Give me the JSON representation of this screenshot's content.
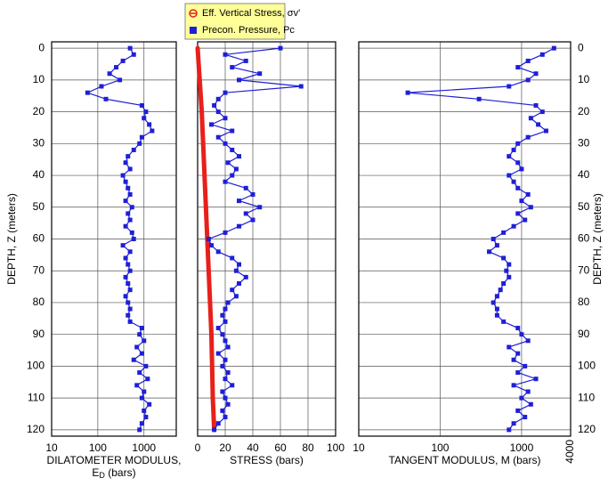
{
  "chart_data": [
    {
      "type": "scatter",
      "log_x": true,
      "invert_y": true,
      "ytick_side": "left",
      "xlabel": "DILATOMETER MODULUS,",
      "xlabel2": {
        "main": "E",
        "sub": "D",
        "rest": " (bars)"
      },
      "ylabel": "DEPTH, Z (meters)",
      "xlim": [
        10,
        5000
      ],
      "xticks": [
        10,
        100,
        1000
      ],
      "ylim": [
        -2,
        122
      ],
      "yticks": [
        0,
        10,
        20,
        30,
        40,
        50,
        60,
        70,
        80,
        90,
        100,
        110,
        120
      ],
      "grid": true,
      "series": [
        {
          "name": "ED",
          "color": "#1f1fd6",
          "marker": "square",
          "y": [
            0,
            2,
            4,
            6,
            8,
            10,
            12,
            14,
            16,
            18,
            20,
            22,
            24,
            26,
            28,
            30,
            32,
            34,
            36,
            38,
            40,
            42,
            44,
            46,
            48,
            50,
            52,
            54,
            56,
            58,
            60,
            62,
            64,
            66,
            68,
            70,
            72,
            74,
            76,
            78,
            80,
            82,
            84,
            86,
            88,
            90,
            92,
            94,
            96,
            98,
            100,
            102,
            104,
            106,
            108,
            110,
            112,
            114,
            116,
            118,
            120
          ],
          "values": [
            500,
            600,
            350,
            250,
            180,
            300,
            120,
            60,
            150,
            900,
            1100,
            1000,
            1300,
            1500,
            900,
            800,
            600,
            450,
            400,
            500,
            350,
            400,
            450,
            500,
            400,
            550,
            450,
            500,
            400,
            550,
            600,
            350,
            500,
            400,
            450,
            500,
            400,
            450,
            500,
            400,
            450,
            500,
            450,
            500,
            900,
            800,
            1000,
            700,
            900,
            600,
            1100,
            800,
            1200,
            700,
            1000,
            900,
            1300,
            1000,
            1100,
            900,
            800
          ]
        }
      ]
    },
    {
      "type": "scatter",
      "log_x": false,
      "invert_y": true,
      "ytick_side": "none",
      "xlabel": "STRESS (bars)",
      "legend": "top",
      "xlim": [
        0,
        100
      ],
      "xticks": [
        0,
        20,
        40,
        60,
        80,
        100
      ],
      "ylim": [
        -2,
        122
      ],
      "yticks": [
        0,
        10,
        20,
        30,
        40,
        50,
        60,
        70,
        80,
        90,
        100,
        110,
        120
      ],
      "grid": true,
      "series": [
        {
          "name": "Eff. Vertical Stress, σv'",
          "color": "#e8201a",
          "marker": "circle",
          "y": [
            0,
            10,
            20,
            30,
            40,
            50,
            60,
            70,
            80,
            90,
            100,
            110,
            120
          ],
          "values": [
            0,
            1.5,
            3,
            4,
            5,
            6,
            7,
            8,
            9,
            10,
            10.5,
            11,
            12
          ]
        },
        {
          "name": "Precon. Pressure, Pc",
          "color": "#1f1fd6",
          "marker": "square",
          "y": [
            0,
            2,
            4,
            6,
            8,
            10,
            12,
            14,
            16,
            18,
            20,
            22,
            24,
            26,
            28,
            30,
            32,
            34,
            36,
            38,
            40,
            42,
            44,
            46,
            48,
            50,
            52,
            54,
            56,
            58,
            60,
            62,
            64,
            66,
            68,
            70,
            72,
            74,
            76,
            78,
            80,
            82,
            84,
            86,
            88,
            90,
            92,
            94,
            96,
            98,
            100,
            102,
            104,
            106,
            108,
            110,
            112,
            114,
            116,
            118,
            120
          ],
          "values": [
            60,
            20,
            35,
            25,
            45,
            30,
            75,
            20,
            15,
            12,
            15,
            20,
            10,
            25,
            15,
            20,
            25,
            30,
            22,
            28,
            25,
            20,
            35,
            40,
            30,
            45,
            35,
            40,
            30,
            20,
            8,
            10,
            15,
            25,
            30,
            28,
            35,
            30,
            25,
            28,
            22,
            20,
            18,
            20,
            15,
            18,
            20,
            22,
            15,
            20,
            18,
            22,
            20,
            25,
            18,
            20,
            22,
            18,
            20,
            15,
            12
          ]
        }
      ]
    },
    {
      "type": "scatter",
      "log_x": true,
      "invert_y": true,
      "ytick_side": "right",
      "xlabel": "TANGENT MODULUS, M (bars)",
      "ylabel": "DEPTH, Z (meters)",
      "xlim": [
        10,
        4000
      ],
      "xticks": [
        10,
        100,
        1000,
        4000
      ],
      "ylim": [
        -2,
        122
      ],
      "yticks": [
        0,
        10,
        20,
        30,
        40,
        50,
        60,
        70,
        80,
        90,
        100,
        110,
        120
      ],
      "grid": true,
      "series": [
        {
          "name": "M",
          "color": "#1f1fd6",
          "marker": "square",
          "y": [
            0,
            2,
            4,
            6,
            8,
            10,
            12,
            14,
            16,
            18,
            20,
            22,
            24,
            26,
            28,
            30,
            32,
            34,
            36,
            38,
            40,
            42,
            44,
            46,
            48,
            50,
            52,
            54,
            56,
            58,
            60,
            62,
            64,
            66,
            68,
            70,
            72,
            74,
            76,
            78,
            80,
            82,
            84,
            86,
            88,
            90,
            92,
            94,
            96,
            98,
            100,
            102,
            104,
            106,
            108,
            110,
            112,
            114,
            116,
            118,
            120
          ],
          "values": [
            2500,
            1800,
            1200,
            900,
            1500,
            1200,
            700,
            40,
            300,
            1500,
            1800,
            1300,
            1600,
            2000,
            1200,
            900,
            800,
            700,
            900,
            1000,
            700,
            800,
            900,
            1200,
            1000,
            1300,
            900,
            1100,
            800,
            600,
            450,
            500,
            400,
            600,
            700,
            650,
            700,
            600,
            550,
            500,
            450,
            500,
            500,
            600,
            900,
            1000,
            1200,
            700,
            900,
            800,
            1100,
            900,
            1500,
            800,
            1200,
            1000,
            1300,
            900,
            1100,
            800,
            700
          ]
        }
      ]
    }
  ]
}
